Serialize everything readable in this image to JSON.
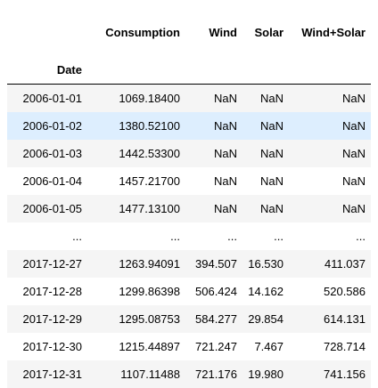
{
  "table": {
    "index_name": "Date",
    "columns": [
      "Consumption",
      "Wind",
      "Solar",
      "Wind+Solar"
    ],
    "rows": [
      {
        "index": "2006-01-01",
        "values": [
          "1069.18400",
          "NaN",
          "NaN",
          "NaN"
        ]
      },
      {
        "index": "2006-01-02",
        "values": [
          "1380.52100",
          "NaN",
          "NaN",
          "NaN"
        ]
      },
      {
        "index": "2006-01-03",
        "values": [
          "1442.53300",
          "NaN",
          "NaN",
          "NaN"
        ]
      },
      {
        "index": "2006-01-04",
        "values": [
          "1457.21700",
          "NaN",
          "NaN",
          "NaN"
        ]
      },
      {
        "index": "2006-01-05",
        "values": [
          "1477.13100",
          "NaN",
          "NaN",
          "NaN"
        ]
      },
      {
        "index": "...",
        "values": [
          "...",
          "...",
          "...",
          "..."
        ]
      },
      {
        "index": "2017-12-27",
        "values": [
          "1263.94091",
          "394.507",
          "16.530",
          "411.037"
        ]
      },
      {
        "index": "2017-12-28",
        "values": [
          "1299.86398",
          "506.424",
          "14.162",
          "520.586"
        ]
      },
      {
        "index": "2017-12-29",
        "values": [
          "1295.08753",
          "584.277",
          "29.854",
          "614.131"
        ]
      },
      {
        "index": "2017-12-30",
        "values": [
          "1215.44897",
          "721.247",
          "7.467",
          "728.714"
        ]
      },
      {
        "index": "2017-12-31",
        "values": [
          "1107.11488",
          "721.176",
          "19.980",
          "741.156"
        ]
      }
    ]
  },
  "colors": {
    "row_stripe": "#f5f5f5",
    "row_highlight": "#ddeefe"
  }
}
